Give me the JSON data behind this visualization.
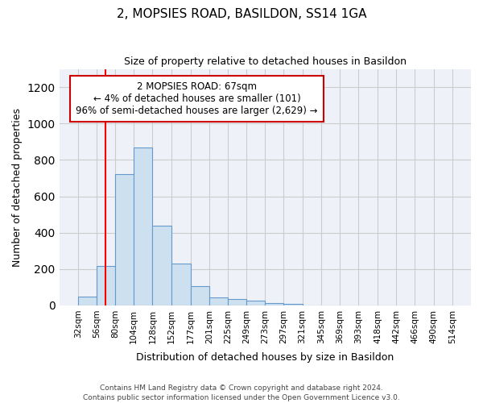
{
  "title1": "2, MOPSIES ROAD, BASILDON, SS14 1GA",
  "title2": "Size of property relative to detached houses in Basildon",
  "xlabel": "Distribution of detached houses by size in Basildon",
  "ylabel": "Number of detached properties",
  "footer": "Contains HM Land Registry data © Crown copyright and database right 2024.\nContains public sector information licensed under the Open Government Licence v3.0.",
  "bin_edges": [
    32,
    56,
    80,
    104,
    128,
    152,
    177,
    201,
    225,
    249,
    273,
    297,
    321,
    345,
    369,
    393,
    418,
    442,
    466,
    490,
    514
  ],
  "bar_heights": [
    50,
    215,
    720,
    870,
    440,
    230,
    105,
    45,
    35,
    25,
    15,
    10,
    0,
    0,
    0,
    0,
    0,
    0,
    0,
    0
  ],
  "bar_color": "#cce0f0",
  "bar_edge_color": "#6699cc",
  "grid_color": "#cccccc",
  "bg_color": "#eef2f8",
  "red_line_x": 67,
  "annotation_line1": "2 MOPSIES ROAD: 67sqm",
  "annotation_line2": "← 4% of detached houses are smaller (101)",
  "annotation_line3": "96% of semi-detached houses are larger (2,629) →",
  "annotation_box_color": "#ffffff",
  "annotation_border_color": "#cc0000",
  "ylim": [
    0,
    1300
  ],
  "yticks": [
    0,
    200,
    400,
    600,
    800,
    1000,
    1200
  ]
}
